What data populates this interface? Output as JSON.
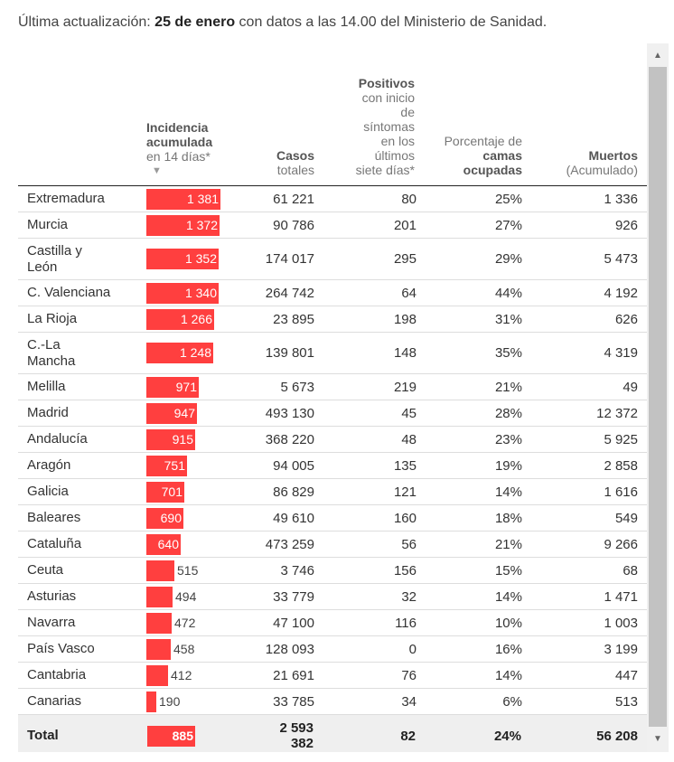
{
  "intro": {
    "prefix": "Última actualización: ",
    "date": "25 de enero",
    "suffix": " con datos a las 14.00 del Ministerio de Sanidad."
  },
  "headers": {
    "incidence": {
      "bold": "Incidencia acumulada",
      "normal": "en 14 días*",
      "sort_icon": "sort-down-icon"
    },
    "cases": {
      "bold": "Casos",
      "normal": "totales"
    },
    "positives": {
      "bold": "Positivos",
      "normal": "con inicio de síntomas en los últimos siete días*"
    },
    "beds": {
      "normal": "Porcentaje de",
      "bold": "camas ocupadas"
    },
    "deaths": {
      "bold": "Muertos",
      "normal": "(Acumulado)"
    }
  },
  "accent_color": "#ff3f3f",
  "max_incidence": 1381,
  "rows": [
    {
      "region": "Extremadura",
      "incidence": 1381,
      "incidence_label": "1 381",
      "cases": "61 221",
      "positives": "80",
      "beds": "25%",
      "deaths": "1 336"
    },
    {
      "region": "Murcia",
      "incidence": 1372,
      "incidence_label": "1 372",
      "cases": "90 786",
      "positives": "201",
      "beds": "27%",
      "deaths": "926"
    },
    {
      "region": "Castilla y León",
      "incidence": 1352,
      "incidence_label": "1 352",
      "cases": "174 017",
      "positives": "295",
      "beds": "29%",
      "deaths": "5 473"
    },
    {
      "region": "C. Valenciana",
      "incidence": 1340,
      "incidence_label": "1 340",
      "cases": "264 742",
      "positives": "64",
      "beds": "44%",
      "deaths": "4 192"
    },
    {
      "region": "La Rioja",
      "incidence": 1266,
      "incidence_label": "1 266",
      "cases": "23 895",
      "positives": "198",
      "beds": "31%",
      "deaths": "626"
    },
    {
      "region": "C.-La Mancha",
      "incidence": 1248,
      "incidence_label": "1 248",
      "cases": "139 801",
      "positives": "148",
      "beds": "35%",
      "deaths": "4 319"
    },
    {
      "region": "Melilla",
      "incidence": 971,
      "incidence_label": "971",
      "cases": "5 673",
      "positives": "219",
      "beds": "21%",
      "deaths": "49"
    },
    {
      "region": "Madrid",
      "incidence": 947,
      "incidence_label": "947",
      "cases": "493 130",
      "positives": "45",
      "beds": "28%",
      "deaths": "12 372"
    },
    {
      "region": "Andalucía",
      "incidence": 915,
      "incidence_label": "915",
      "cases": "368 220",
      "positives": "48",
      "beds": "23%",
      "deaths": "5 925"
    },
    {
      "region": "Aragón",
      "incidence": 751,
      "incidence_label": "751",
      "cases": "94 005",
      "positives": "135",
      "beds": "19%",
      "deaths": "2 858"
    },
    {
      "region": "Galicia",
      "incidence": 701,
      "incidence_label": "701",
      "cases": "86 829",
      "positives": "121",
      "beds": "14%",
      "deaths": "1 616"
    },
    {
      "region": "Baleares",
      "incidence": 690,
      "incidence_label": "690",
      "cases": "49 610",
      "positives": "160",
      "beds": "18%",
      "deaths": "549"
    },
    {
      "region": "Cataluña",
      "incidence": 640,
      "incidence_label": "640",
      "cases": "473 259",
      "positives": "56",
      "beds": "21%",
      "deaths": "9 266"
    },
    {
      "region": "Ceuta",
      "incidence": 515,
      "incidence_label": "515",
      "cases": "3 746",
      "positives": "156",
      "beds": "15%",
      "deaths": "68"
    },
    {
      "region": "Asturias",
      "incidence": 494,
      "incidence_label": "494",
      "cases": "33 779",
      "positives": "32",
      "beds": "14%",
      "deaths": "1 471"
    },
    {
      "region": "Navarra",
      "incidence": 472,
      "incidence_label": "472",
      "cases": "47 100",
      "positives": "116",
      "beds": "10%",
      "deaths": "1 003"
    },
    {
      "region": "País Vasco",
      "incidence": 458,
      "incidence_label": "458",
      "cases": "128 093",
      "positives": "0",
      "beds": "16%",
      "deaths": "3 199"
    },
    {
      "region": "Cantabria",
      "incidence": 412,
      "incidence_label": "412",
      "cases": "21 691",
      "positives": "76",
      "beds": "14%",
      "deaths": "447"
    },
    {
      "region": "Canarias",
      "incidence": 190,
      "incidence_label": "190",
      "cases": "33 785",
      "positives": "34",
      "beds": "6%",
      "deaths": "513"
    }
  ],
  "total": {
    "label": "Total",
    "incidence": 885,
    "incidence_label": "885",
    "cases": "2 593 382",
    "positives": "82",
    "beds": "24%",
    "deaths": "56 208"
  },
  "scrollbar": {
    "up_icon": "scroll-up-arrow-icon",
    "down_icon": "scroll-down-arrow-icon"
  }
}
